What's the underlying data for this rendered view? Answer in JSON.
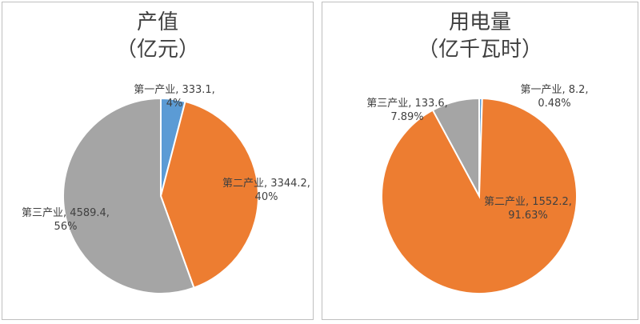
{
  "chart_data": [
    {
      "type": "pie",
      "title": [
        "产值",
        "（亿元）"
      ],
      "start": "12-o-clock, clockwise",
      "colors": [
        "#5b9bd5",
        "#ed7d31",
        "#a5a5a5"
      ],
      "slices": [
        {
          "label": "第一产业",
          "value": 333.1,
          "percent": "4%",
          "line1": "第一产业, 333.1,",
          "line2": "4%"
        },
        {
          "label": "第二产业",
          "value": 3344.2,
          "percent": "40%",
          "line1": "第二产业, 3344.2,",
          "line2": "40%"
        },
        {
          "label": "第三产业",
          "value": 4589.4,
          "percent": "56%",
          "line1": "第三产业, 4589.4,",
          "line2": "56%"
        }
      ]
    },
    {
      "type": "pie",
      "title": [
        "用电量",
        "（亿千瓦时）"
      ],
      "start": "12-o-clock, clockwise",
      "colors": [
        "#5b9bd5",
        "#ed7d31",
        "#a5a5a5"
      ],
      "slices": [
        {
          "label": "第一产业",
          "value": 8.2,
          "percent": "0.48%",
          "line1": "第一产业, 8.2,",
          "line2": "0.48%"
        },
        {
          "label": "第二产业",
          "value": 1552.2,
          "percent": "91.63%",
          "line1": "第二产业, 1552.2,",
          "line2": "91.63%"
        },
        {
          "label": "第三产业",
          "value": 133.6,
          "percent": "7.89%",
          "line1": "第三产业, 133.6,",
          "line2": "7.89%"
        }
      ]
    }
  ]
}
